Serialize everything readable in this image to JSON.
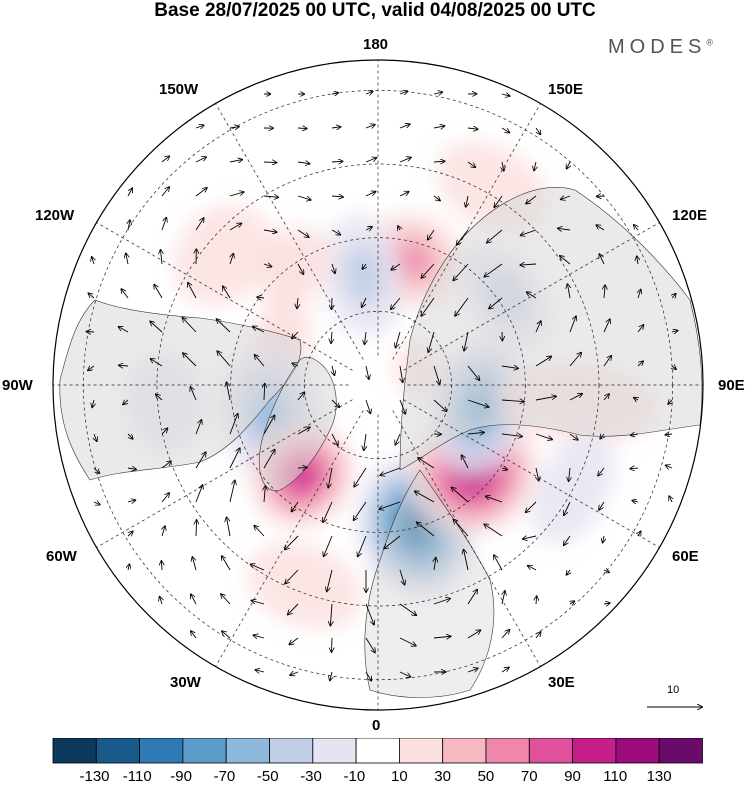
{
  "title": "Base 28/07/2025 00 UTC, valid 04/08/2025 00 UTC",
  "brand": "MODES",
  "brand_mark": "®",
  "longitude_labels": {
    "top": "180",
    "top_left": "150W",
    "top_right": "150E",
    "upper_left": "120W",
    "upper_right": "120E",
    "left": "90W",
    "right": "90E",
    "lower_left": "60W",
    "lower_right": "60E",
    "bottom_left": "30W",
    "bottom_right": "30E",
    "bottom": "0"
  },
  "vector_scale": {
    "label": "10"
  },
  "colorbar": {
    "colors": [
      "#0b3a5c",
      "#1a5a8a",
      "#2f7ab4",
      "#5b9cc9",
      "#8fb9dc",
      "#c0cfe6",
      "#e6e4f1",
      "#ffffff",
      "#fbe0e0",
      "#f6b8c1",
      "#ef86ac",
      "#e1509c",
      "#c51f8c",
      "#9b0b7b",
      "#6a0a6b"
    ],
    "labels": [
      "-130",
      "-110",
      "-90",
      "-70",
      "-50",
      "-30",
      "-10",
      "10",
      "30",
      "50",
      "70",
      "90",
      "110",
      "130"
    ]
  },
  "anomalies": [
    {
      "lon": 165,
      "colat": 35,
      "value": 60,
      "rx": 52,
      "ry": 48
    },
    {
      "lon": -172,
      "colat": 30,
      "value": -45,
      "rx": 40,
      "ry": 62
    },
    {
      "lon": -145,
      "colat": 40,
      "value": 30,
      "rx": 42,
      "ry": 36
    },
    {
      "lon": 125,
      "colat": 42,
      "value": -45,
      "rx": 58,
      "ry": 38
    },
    {
      "lon": 110,
      "colat": 12,
      "value": 20,
      "rx": 30,
      "ry": 26
    },
    {
      "lon": -100,
      "colat": 28,
      "value": 50,
      "rx": 85,
      "ry": 32
    },
    {
      "lon": -72,
      "colat": 30,
      "value": -65,
      "rx": 75,
      "ry": 52
    },
    {
      "lon": -40,
      "colat": 32,
      "value": 95,
      "rx": 50,
      "ry": 55
    },
    {
      "lon": 15,
      "colat": 40,
      "value": -110,
      "rx": 58,
      "ry": 72
    },
    {
      "lon": 48,
      "colat": 35,
      "value": 120,
      "rx": 65,
      "ry": 62
    },
    {
      "lon": 78,
      "colat": 28,
      "value": -70,
      "rx": 70,
      "ry": 48
    },
    {
      "lon": 85,
      "colat": 55,
      "value": 20,
      "rx": 40,
      "ry": 80
    },
    {
      "lon": 62,
      "colat": 60,
      "value": -25,
      "rx": 60,
      "ry": 35
    },
    {
      "lon": -20,
      "colat": 58,
      "value": 20,
      "rx": 60,
      "ry": 40
    },
    {
      "lon": -130,
      "colat": 55,
      "value": 20,
      "rx": 55,
      "ry": 45
    },
    {
      "lon": 150,
      "colat": 62,
      "value": 15,
      "rx": 60,
      "ry": 40
    },
    {
      "lon": -85,
      "colat": 58,
      "value": -15,
      "rx": 50,
      "ry": 40
    }
  ]
}
